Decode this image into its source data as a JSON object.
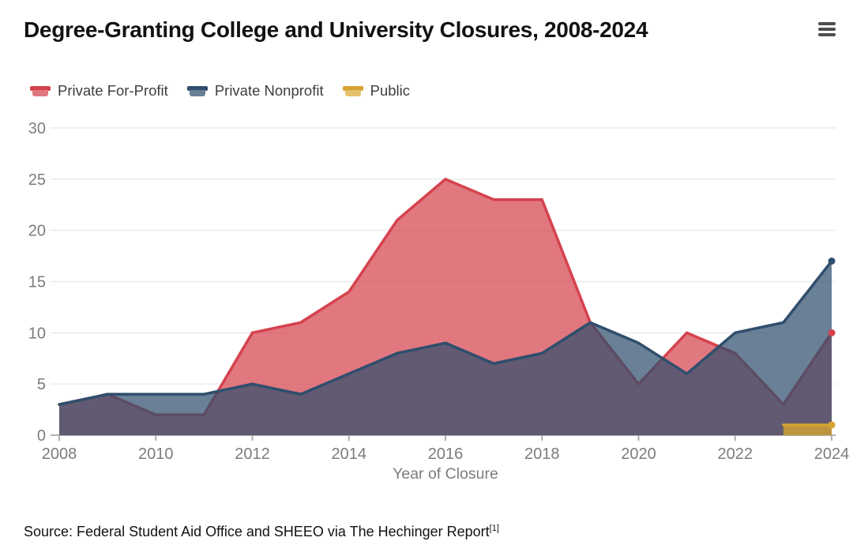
{
  "header": {
    "title": "Degree-Granting College and University Closures, 2008-2024",
    "menu_icon": "hamburger"
  },
  "legend": {
    "items": [
      {
        "label": "Private For-Profit",
        "line_color": "#d5424e",
        "fill_color": "#e17780"
      },
      {
        "label": "Private Nonprofit",
        "line_color": "#2f4e6d",
        "fill_color": "#698096"
      },
      {
        "label": "Public",
        "line_color": "#d6a32f",
        "fill_color": "#e6c26d"
      }
    ]
  },
  "chart_data": {
    "type": "area",
    "title": "Degree-Granting College and University Closures, 2008-2024",
    "x": [
      2008,
      2009,
      2010,
      2011,
      2012,
      2013,
      2014,
      2015,
      2016,
      2017,
      2018,
      2019,
      2020,
      2021,
      2022,
      2023,
      2024
    ],
    "series": [
      {
        "name": "Private For-Profit",
        "line_color": "#d5424e",
        "fill_rgba": "rgba(213,66,78,0.72)",
        "end_dot": true,
        "values": [
          3,
          4,
          2,
          2,
          10,
          11,
          14,
          21,
          25,
          23,
          23,
          11,
          5,
          10,
          8,
          3,
          10
        ]
      },
      {
        "name": "Private Nonprofit",
        "line_color": "#2f4e6d",
        "fill_rgba": "rgba(47,79,110,0.72)",
        "end_dot": true,
        "values": [
          3,
          4,
          4,
          4,
          5,
          4,
          6,
          8,
          9,
          7,
          8,
          11,
          9,
          6,
          10,
          11,
          17
        ]
      },
      {
        "name": "Public",
        "line_color": "#d6a32f",
        "fill_rgba": "rgba(214,163,47,0.8)",
        "end_dot": true,
        "values": [
          null,
          null,
          null,
          null,
          null,
          null,
          null,
          null,
          null,
          null,
          null,
          null,
          null,
          null,
          null,
          1,
          1
        ]
      }
    ],
    "xlabel": "Year of Closure",
    "ylabel": "",
    "ylim": [
      0,
      30
    ],
    "yticks": [
      0,
      5,
      10,
      15,
      20,
      25,
      30
    ],
    "xticks": [
      2008,
      2010,
      2012,
      2014,
      2016,
      2018,
      2020,
      2022,
      2024
    ],
    "grid": true,
    "legend_position": "top-left",
    "grid_color": "#ececec",
    "axis_color": "#a8a8a8"
  },
  "source": {
    "text": "Source: Federal Student Aid Office and SHEEO via The Hechinger Report",
    "superscript": "[1]"
  }
}
